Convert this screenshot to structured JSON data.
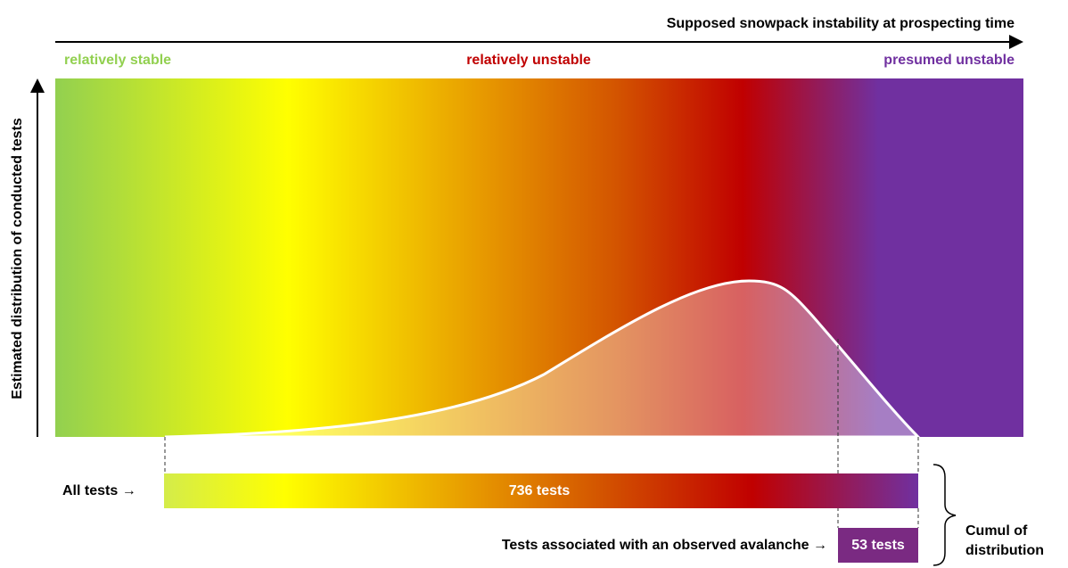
{
  "axis_x": {
    "title": "Supposed snowpack instability at prospecting time",
    "zones": [
      "relatively stable",
      "relatively unstable",
      "presumed unstable"
    ]
  },
  "axis_y": {
    "title": "Estimated distribution of conducted tests"
  },
  "bars": [
    {
      "label": "All tests →",
      "text": "736 tests"
    },
    {
      "label": "Tests associated with an observed avalanche →",
      "text": "53 tests"
    }
  ],
  "brace_label": [
    "Cumul of",
    "distribution"
  ]
}
